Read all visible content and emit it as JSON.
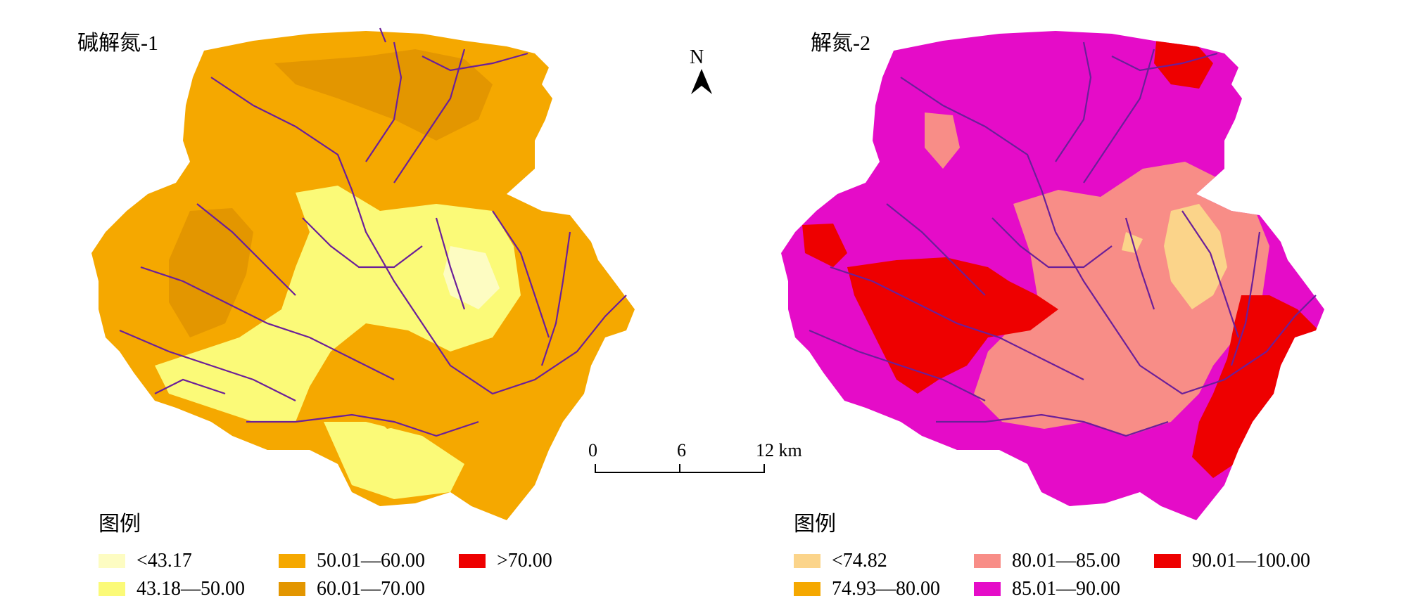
{
  "left_map": {
    "title": "碱解氮-1",
    "legend": {
      "title": "图例",
      "items": [
        {
          "label": "<43.17",
          "color": "#fdfcc2"
        },
        {
          "label": "43.18—50.00",
          "color": "#fbfa78"
        },
        {
          "label": "50.01—60.00",
          "color": "#f5a800"
        },
        {
          "label": "60.01—70.00",
          "color": "#e39600"
        },
        {
          "label": ">70.00",
          "color": "#ee0000"
        }
      ]
    }
  },
  "right_map": {
    "title": "解氮-2",
    "legend": {
      "title": "图例",
      "items": [
        {
          "label": "<74.82",
          "color": "#fbd48a"
        },
        {
          "label": "74.93—80.00",
          "color": "#f5a800"
        },
        {
          "label": "80.01—85.00",
          "color": "#f88d87"
        },
        {
          "label": "85.01—90.00",
          "color": "#e50cc8"
        },
        {
          "label": "90.01—100.00",
          "color": "#ee0000"
        }
      ]
    }
  },
  "north_arrow": {
    "label": "N"
  },
  "scale_bar": {
    "ticks": [
      "0",
      "6",
      "12 km"
    ]
  },
  "river_color": "#6b1f99"
}
